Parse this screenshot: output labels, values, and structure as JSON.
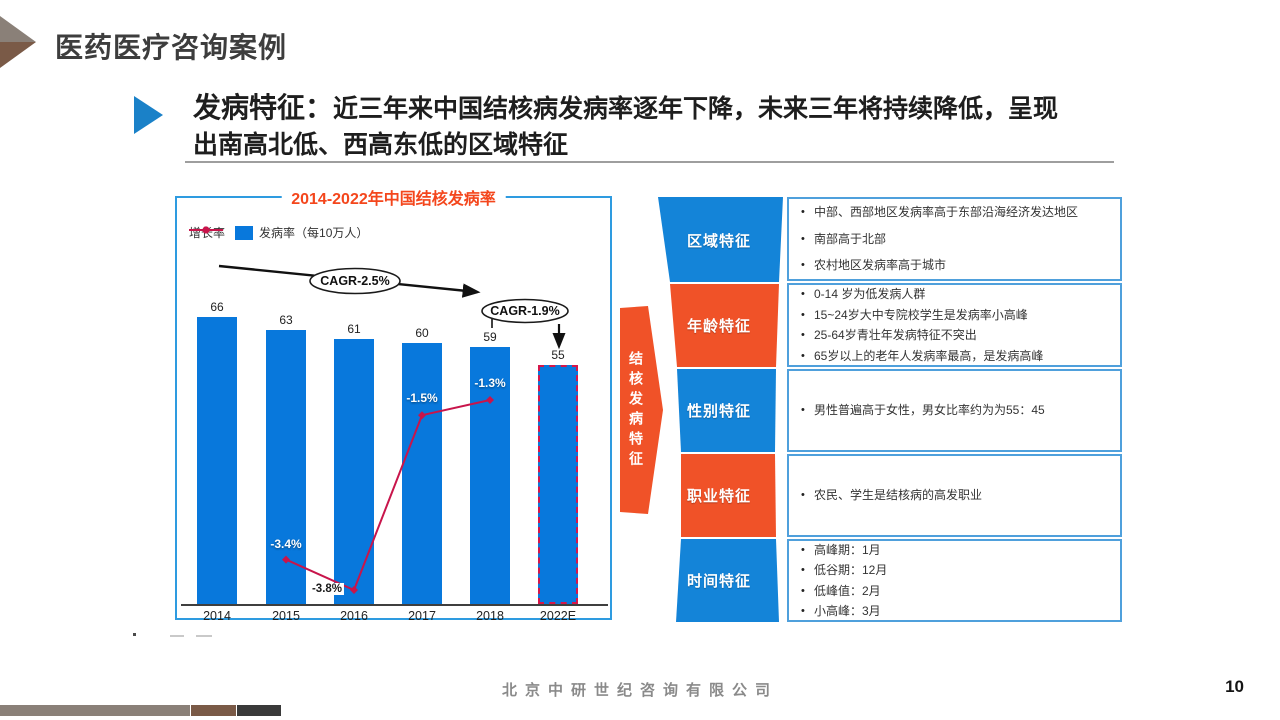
{
  "slide": {
    "page_title": "医药医疗咨询案例",
    "heading": {
      "prefix": "发病特征：",
      "line1": "近三年来中国结核病发病率逐年下降，未来三年将持续降低，呈现",
      "line2": "出南高北低、西高东低的区域特征"
    },
    "footer": {
      "company": "北京中研世纪咨询有限公司",
      "page_number": "10"
    }
  },
  "chart_data": {
    "type": "bar",
    "title": "2014-2022年中国结核发病率",
    "categories": [
      "2014",
      "2015",
      "2016",
      "2017",
      "2018",
      "2022E"
    ],
    "series": [
      {
        "name": "发病率（每10万人）",
        "type": "bar",
        "values": [
          66,
          63,
          61,
          60,
          59,
          55
        ]
      },
      {
        "name": "增长率",
        "type": "line",
        "unit": "%",
        "values": [
          null,
          -3.4,
          -3.8,
          -1.5,
          -1.3,
          null
        ]
      }
    ],
    "annotations": {
      "cagr_full": "CAGR-2.5%",
      "cagr_recent": "CAGR-1.9%"
    },
    "legend_position": "top-left",
    "forecast_category": "2022E",
    "ylim": [
      0,
      80
    ]
  },
  "funnel": {
    "arrow_label": "结核发病特征",
    "segments": [
      {
        "label": "区域特征",
        "color": "blue",
        "bullets": [
          "中部、西部地区发病率高于东部沿海经济发达地区",
          "南部高于北部",
          "农村地区发病率高于城市"
        ]
      },
      {
        "label": "年龄特征",
        "color": "orange",
        "bullets": [
          "0-14 岁为低发病人群",
          "15~24岁大中专院校学生是发病率小高峰",
          "25-64岁青壮年发病特征不突出",
          "65岁以上的老年人发病率最高，是发病高峰"
        ]
      },
      {
        "label": "性别特征",
        "color": "blue",
        "bullets": [
          "男性普遍高于女性，男女比率约为为55：45"
        ]
      },
      {
        "label": "职业特征",
        "color": "orange",
        "bullets": [
          "农民、学生是结核病的高发职业"
        ]
      },
      {
        "label": "时间特征",
        "color": "blue",
        "bullets": [
          "高峰期：1月",
          "低谷期：12月",
          "低峰值：2月",
          "小高峰：3月"
        ]
      }
    ]
  },
  "colors": {
    "bar_blue": "#0878DC",
    "line_red": "#C8154B",
    "chart_title_orange": "#F4461C",
    "funnel_blue": "#1484D8",
    "funnel_orange": "#F05228",
    "box_border_blue": "#4FA0DC",
    "heading_triangle_blue": "#1A81C8",
    "panel_border_blue": "#2E9BE0",
    "forecast_dashed_red": "#D5164A",
    "logo_gray": "#8A8078",
    "logo_brown": "#7A5A47",
    "footer_bar_dark": "#3A3A3A"
  }
}
